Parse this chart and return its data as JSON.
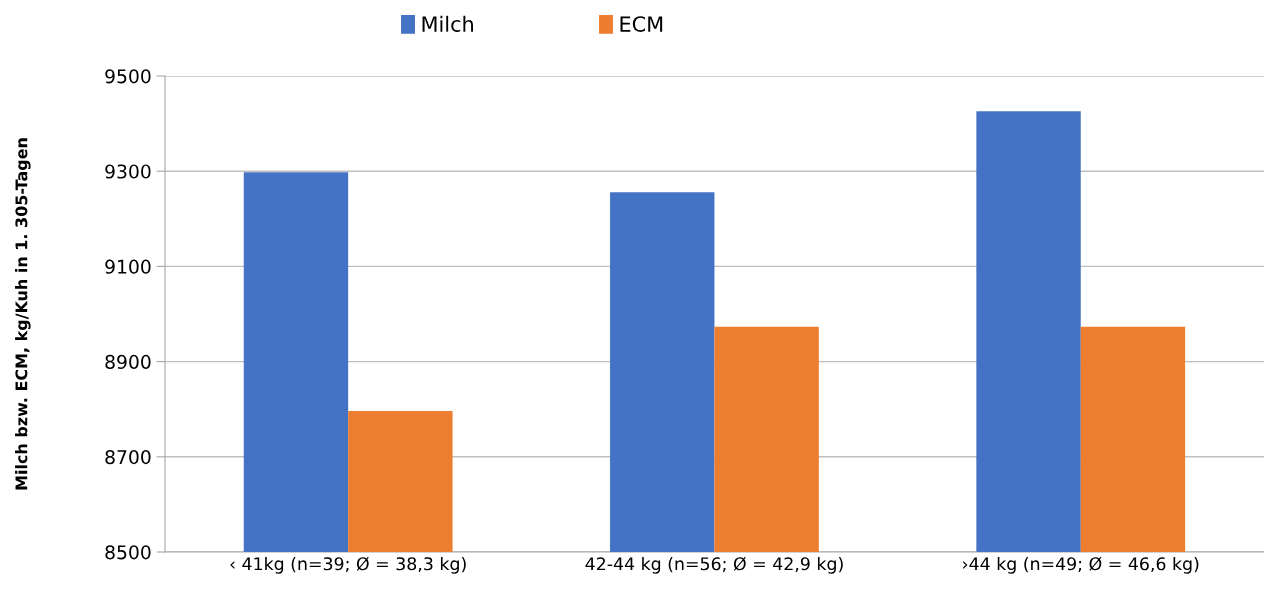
{
  "chart_data": {
    "type": "bar",
    "ylabel": "Milch bzw. ECM, kg/Kuh in 1. 305-Tagen",
    "categories": [
      "‹ 41kg (n=39; Ø = 38,3 kg)",
      "42-44 kg (n=56; Ø = 42,9 kg)",
      "›44 kg (n=49; Ø = 46,6 kg)"
    ],
    "series": [
      {
        "name": "Milch",
        "color": "#4472c4",
        "values": [
          9298,
          9256,
          9426
        ]
      },
      {
        "name": "ECM",
        "color": "#ed7d31",
        "values": [
          8796,
          8973,
          8973
        ]
      }
    ],
    "ylim": [
      8500,
      9500
    ],
    "yticks": [
      8500,
      8700,
      8900,
      9100,
      9300,
      9500
    ],
    "grid": "y",
    "legend": "top"
  }
}
